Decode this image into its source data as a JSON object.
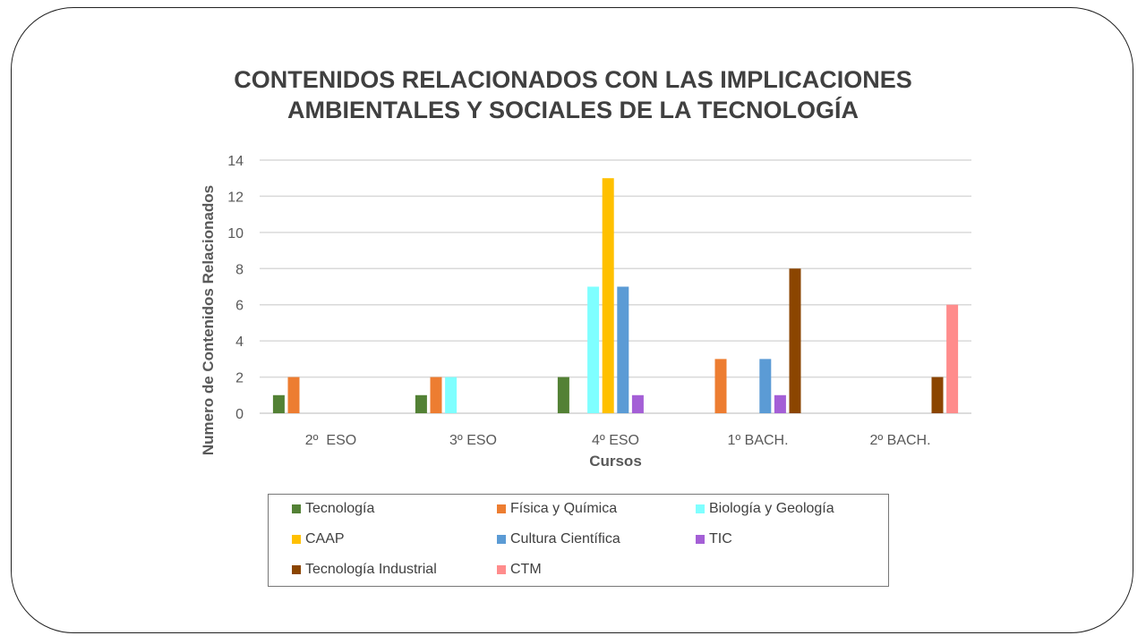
{
  "chart_data": {
    "type": "bar",
    "title": [
      "CONTENIDOS RELACIONADOS CON LAS IMPLICACIONES",
      "AMBIENTALES Y SOCIALES DE LA TECNOLOGÍA"
    ],
    "xlabel": "Cursos",
    "ylabel": "Numero de Contenidos Relacionados",
    "ylim": [
      0,
      14
    ],
    "yticks": [
      0,
      2,
      4,
      6,
      8,
      10,
      12,
      14
    ],
    "grid": true,
    "legend": "bottom",
    "categories": [
      "2º  ESO",
      "3º ESO",
      "4º ESO",
      "1º BACH.",
      "2º BACH."
    ],
    "series": [
      {
        "name": "Tecnología",
        "color": "#538135",
        "values": [
          1,
          1,
          2,
          0,
          0
        ]
      },
      {
        "name": "Física y Química",
        "color": "#ED7D31",
        "values": [
          2,
          2,
          0,
          3,
          0
        ]
      },
      {
        "name": "Biología y Geología",
        "color": "#7FFFFF",
        "values": [
          0,
          2,
          7,
          0,
          0
        ]
      },
      {
        "name": "CAAP",
        "color": "#FFC000",
        "values": [
          0,
          0,
          13,
          0,
          0
        ]
      },
      {
        "name": "Cultura Científica",
        "color": "#5B9BD5",
        "values": [
          0,
          0,
          7,
          3,
          0
        ]
      },
      {
        "name": "TIC",
        "color": "#A45FD6",
        "values": [
          0,
          0,
          1,
          1,
          0
        ]
      },
      {
        "name": "Tecnología Industrial",
        "color": "#8B4500",
        "values": [
          0,
          0,
          0,
          8,
          2
        ]
      },
      {
        "name": "CTM",
        "color": "#FF8C8C",
        "values": [
          0,
          0,
          0,
          0,
          6
        ]
      }
    ]
  }
}
